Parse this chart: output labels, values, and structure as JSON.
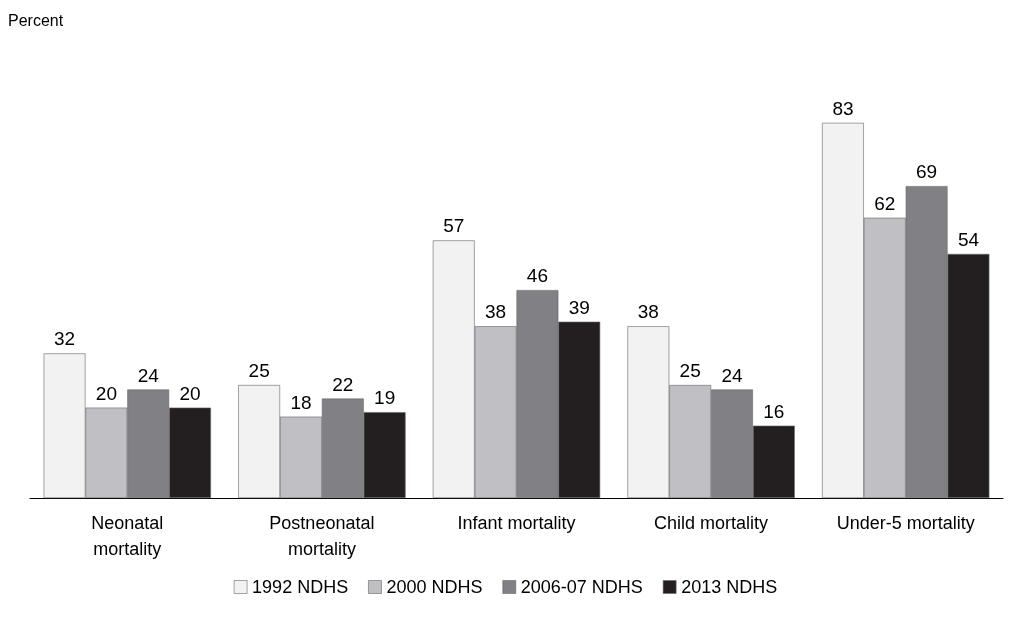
{
  "chart_data": {
    "type": "bar",
    "annotations": [
      "Percent"
    ],
    "categories": [
      "Neonatal\nmortality",
      "Postneonatal\nmortality",
      "Infant mortality",
      "Child mortality",
      "Under-5 mortality"
    ],
    "series": [
      {
        "name": "1992 NDHS",
        "color": "#f2f2f2",
        "values": [
          32,
          25,
          57,
          38,
          83
        ]
      },
      {
        "name": "2000 NDHS",
        "color": "#bfbfc4",
        "values": [
          20,
          18,
          38,
          25,
          62
        ]
      },
      {
        "name": "2006-07 NDHS",
        "color": "#808085",
        "values": [
          24,
          22,
          46,
          24,
          69
        ]
      },
      {
        "name": "2013 NDHS",
        "color": "#231f20",
        "values": [
          20,
          19,
          39,
          16,
          54
        ]
      }
    ],
    "data_labels": true,
    "legend": "bottom",
    "grid": false,
    "tick_labels": "x"
  }
}
